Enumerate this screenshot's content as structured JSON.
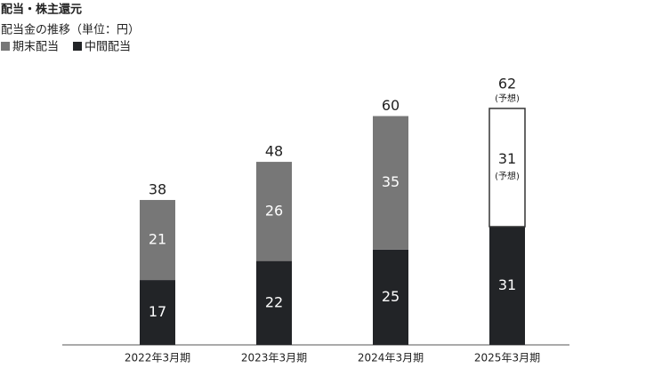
{
  "chart_data": {
    "type": "stacked_bar",
    "title": "配当・株主還元",
    "subtitle": "配当金の推移（単位：円）",
    "categories": [
      "2022年3月期",
      "2023年3月期",
      "2024年3月期",
      "2025年3月期"
    ],
    "series": [
      {
        "name": "中間配当",
        "color": "#222427",
        "values": [
          17,
          22,
          25,
          31
        ]
      },
      {
        "name": "期末配当",
        "color": "#777777",
        "values": [
          21,
          26,
          35,
          31
        ]
      }
    ],
    "totals": [
      38,
      48,
      60,
      62
    ],
    "forecast": [
      false,
      false,
      false,
      true
    ],
    "forecast_label": "(予想)",
    "ylim": [
      0,
      62
    ]
  }
}
